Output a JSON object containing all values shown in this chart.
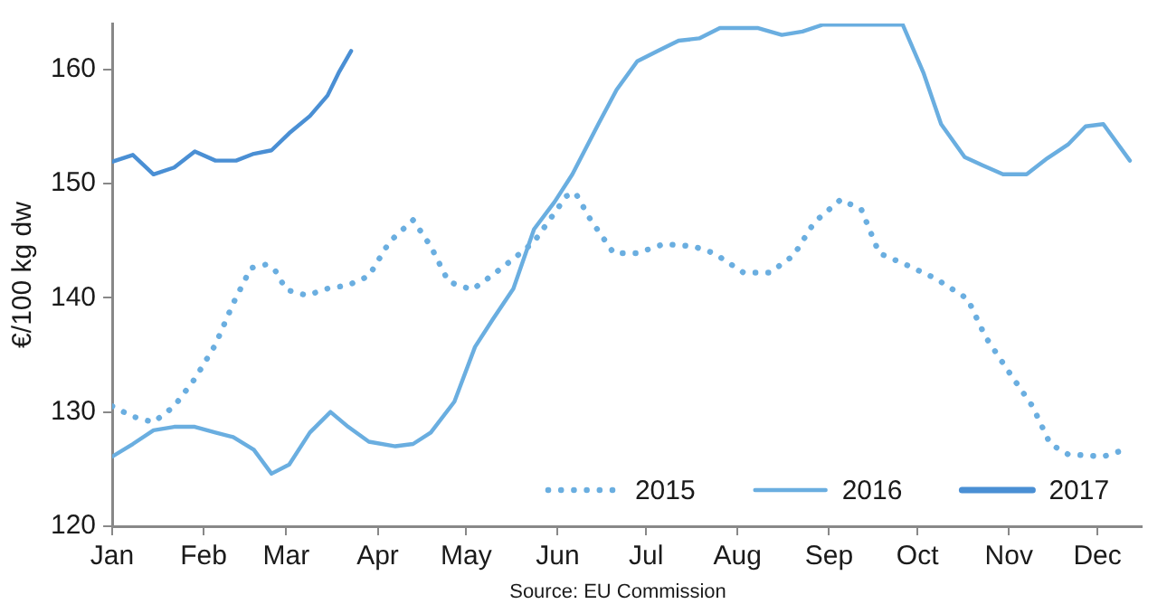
{
  "chart_data": {
    "type": "line",
    "ylabel": "€/100 kg dw",
    "xlim": [
      "--01-01",
      "--12-16"
    ],
    "xticks": [
      {
        "value": "--01-01",
        "label": "Jan"
      },
      {
        "value": "--02-01",
        "label": "Feb"
      },
      {
        "value": "--03-01",
        "label": "Mar"
      },
      {
        "value": "--04-01",
        "label": "Apr"
      },
      {
        "value": "--05-01",
        "label": "May"
      },
      {
        "value": "--06-01",
        "label": "Jun"
      },
      {
        "value": "--07-01",
        "label": "Jul"
      },
      {
        "value": "--08-01",
        "label": "Aug"
      },
      {
        "value": "--09-01",
        "label": "Sep"
      },
      {
        "value": "--10-01",
        "label": "Oct"
      },
      {
        "value": "--11-01",
        "label": "Nov"
      },
      {
        "value": "--12-01",
        "label": "Dec"
      }
    ],
    "ylim": [
      120,
      164
    ],
    "yticks": [
      120,
      130,
      140,
      150,
      160
    ],
    "grid": false,
    "legend": "bottom",
    "marker": "none",
    "annotations": [
      "Source: EU Commission"
    ],
    "series": [
      {
        "name": "2015",
        "color": "#6aaee0",
        "line_style": "dotted",
        "x": [
          "--01-01",
          "--01-08",
          "--01-15",
          "--01-22",
          "--01-29",
          "--02-05",
          "--02-11",
          "--02-17",
          "--02-22",
          "--02-25",
          "--03-01",
          "--03-08",
          "--03-15",
          "--03-22",
          "--03-29",
          "--04-05",
          "--04-13",
          "--04-19",
          "--04-25",
          "--05-03",
          "--05-10",
          "--05-17",
          "--05-24",
          "--06-04",
          "--06-07",
          "--06-12",
          "--06-20",
          "--06-28",
          "--07-07",
          "--07-17",
          "--07-24",
          "--08-03",
          "--08-12",
          "--08-20",
          "--08-27",
          "--09-05",
          "--09-12",
          "--09-18",
          "--09-27",
          "--10-07",
          "--10-18",
          "--10-24",
          "--11-01",
          "--11-09",
          "--11-15",
          "--11-21",
          "--12-03",
          "--12-09"
        ],
        "values": [
          130.5,
          129.6,
          129.1,
          130.5,
          132.9,
          135.9,
          139.5,
          142.6,
          142.9,
          142.5,
          140.7,
          140.2,
          140.8,
          141.1,
          141.9,
          144.9,
          146.8,
          144.5,
          141.4,
          140.7,
          142.0,
          143.4,
          144.9,
          148.9,
          149.2,
          146.9,
          143.9,
          143.9,
          144.7,
          144.5,
          143.9,
          142.2,
          142.2,
          143.7,
          146.6,
          148.6,
          147.7,
          143.9,
          142.9,
          141.7,
          139.9,
          136.6,
          133.5,
          130.5,
          127.2,
          126.3,
          126.1,
          126.6
        ]
      },
      {
        "name": "2016",
        "color": "#6aaee0",
        "line_style": "solid",
        "x": [
          "--01-01",
          "--01-08",
          "--01-15",
          "--01-22",
          "--01-29",
          "--02-05",
          "--02-11",
          "--02-18",
          "--02-24",
          "--03-02",
          "--03-09",
          "--03-16",
          "--03-22",
          "--03-29",
          "--04-07",
          "--04-13",
          "--04-19",
          "--04-27",
          "--05-04",
          "--05-10",
          "--05-17",
          "--05-24",
          "--05-31",
          "--06-06",
          "--06-15",
          "--06-21",
          "--06-28",
          "--07-05",
          "--07-12",
          "--07-19",
          "--07-26",
          "--08-08",
          "--08-16",
          "--08-23",
          "--08-30",
          "--09-26",
          "--10-03",
          "--10-09",
          "--10-17",
          "--10-23",
          "--10-30",
          "--11-07",
          "--11-14",
          "--11-21",
          "--11-27",
          "--12-03",
          "--12-12"
        ],
        "values": [
          126.1,
          127.2,
          128.4,
          128.7,
          128.7,
          128.2,
          127.8,
          126.7,
          124.6,
          125.4,
          128.2,
          130.0,
          128.7,
          127.4,
          127.0,
          127.2,
          128.2,
          130.9,
          135.7,
          138.1,
          140.8,
          146.0,
          148.4,
          150.8,
          155.3,
          158.2,
          160.7,
          161.6,
          162.5,
          162.7,
          163.6,
          163.6,
          163.0,
          163.3,
          163.9,
          163.9,
          159.7,
          155.2,
          152.3,
          151.6,
          150.8,
          150.8,
          152.2,
          153.4,
          155.0,
          155.2,
          152.0
        ]
      },
      {
        "name": "2017",
        "color": "#4a8fd4",
        "line_style": "solid",
        "x": [
          "--01-01",
          "--01-08",
          "--01-15",
          "--01-22",
          "--01-29",
          "--02-05",
          "--02-12",
          "--02-18",
          "--02-24",
          "--03-02",
          "--03-09",
          "--03-15",
          "--03-19",
          "--03-23"
        ],
        "values": [
          151.9,
          152.5,
          150.8,
          151.4,
          152.8,
          152.0,
          152.0,
          152.6,
          152.9,
          154.4,
          155.9,
          157.7,
          159.8,
          161.6
        ]
      }
    ]
  }
}
